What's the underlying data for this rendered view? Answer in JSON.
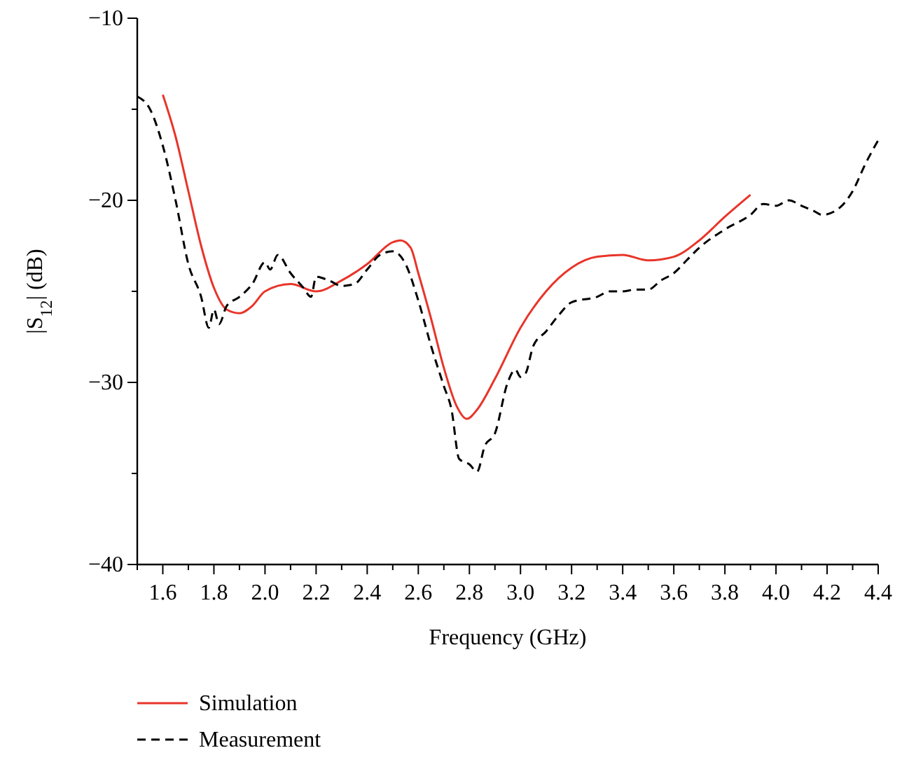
{
  "chart_data": {
    "type": "line",
    "xlabel": "Frequency (GHz)",
    "ylabel": "|S$_{12}$| (dB)",
    "xlim": [
      1.5,
      4.4
    ],
    "xticks": [
      {
        "value": 1.5,
        "label": null
      },
      1.6,
      {
        "value": 1.7,
        "label": null
      },
      1.8,
      {
        "value": 1.9,
        "label": null
      },
      {
        "value": 2.0,
        "label": "2.0"
      },
      {
        "value": 2.1,
        "label": null
      },
      2.2,
      {
        "value": 2.3,
        "label": null
      },
      2.4,
      {
        "value": 2.5,
        "label": null
      },
      2.6,
      {
        "value": 2.7,
        "label": null
      },
      2.8,
      {
        "value": 2.9,
        "label": null
      },
      {
        "value": 3.0,
        "label": "3.0"
      },
      {
        "value": 3.1,
        "label": null
      },
      3.2,
      {
        "value": 3.3,
        "label": null
      },
      3.4,
      {
        "value": 3.5,
        "label": null
      },
      3.6,
      {
        "value": 3.7,
        "label": null
      },
      3.8,
      {
        "value": 3.9,
        "label": null
      },
      {
        "value": 4.0,
        "label": "4.0"
      },
      {
        "value": 4.1,
        "label": null
      },
      4.2,
      {
        "value": 4.3,
        "label": null
      },
      4.4
    ],
    "ylim": [
      -40,
      -10
    ],
    "yticks": [
      {
        "value": -40,
        "label": "−40"
      },
      {
        "value": -35,
        "label": null
      },
      {
        "value": -30,
        "label": "−30"
      },
      {
        "value": -25,
        "label": null
      },
      {
        "value": -20,
        "label": "−20"
      },
      {
        "value": -15,
        "label": null
      },
      {
        "value": -10,
        "label": "−10"
      }
    ],
    "grid": false,
    "legend": "bottom left",
    "marker": "none",
    "series": [
      {
        "name": "Simulation",
        "color": "#e8352a",
        "line_style": "solid",
        "x": [
          1.6,
          1.65,
          1.7,
          1.75,
          1.8,
          1.85,
          1.9,
          1.95,
          2.0,
          2.1,
          2.2,
          2.3,
          2.4,
          2.5,
          2.53,
          2.57,
          2.6,
          2.65,
          2.7,
          2.75,
          2.79,
          2.83,
          2.9,
          3.0,
          3.1,
          3.2,
          3.3,
          3.4,
          3.5,
          3.6,
          3.7,
          3.8,
          3.9
        ],
        "values": [
          -14.2,
          -16.5,
          -19.5,
          -22.5,
          -24.8,
          -26.0,
          -26.2,
          -25.8,
          -25.0,
          -24.6,
          -25.0,
          -24.4,
          -23.5,
          -22.3,
          -22.2,
          -22.6,
          -24.0,
          -26.5,
          -29.2,
          -31.3,
          -32.0,
          -31.5,
          -29.8,
          -27.0,
          -25.0,
          -23.7,
          -23.1,
          -23.0,
          -23.3,
          -23.1,
          -22.2,
          -20.9,
          -19.7
        ]
      },
      {
        "name": "Measurement",
        "color": "#000000",
        "line_style": "dashed",
        "x": [
          1.5,
          1.55,
          1.6,
          1.65,
          1.7,
          1.75,
          1.78,
          1.8,
          1.82,
          1.85,
          1.9,
          1.95,
          2.0,
          2.02,
          2.05,
          2.1,
          2.15,
          2.18,
          2.2,
          2.25,
          2.3,
          2.35,
          2.4,
          2.45,
          2.5,
          2.55,
          2.6,
          2.65,
          2.7,
          2.73,
          2.76,
          2.8,
          2.83,
          2.86,
          2.9,
          2.95,
          2.98,
          3.0,
          3.02,
          3.05,
          3.1,
          3.15,
          3.2,
          3.3,
          3.35,
          3.4,
          3.45,
          3.5,
          3.55,
          3.6,
          3.65,
          3.7,
          3.8,
          3.9,
          3.95,
          4.0,
          4.05,
          4.1,
          4.15,
          4.18,
          4.25,
          4.3,
          4.35,
          4.4
        ],
        "values": [
          -14.3,
          -15.0,
          -17.0,
          -20.0,
          -23.5,
          -25.3,
          -27.0,
          -26.0,
          -26.8,
          -25.8,
          -25.3,
          -24.6,
          -23.4,
          -23.8,
          -23.0,
          -24.0,
          -24.8,
          -25.3,
          -24.2,
          -24.4,
          -24.7,
          -24.6,
          -23.8,
          -23.0,
          -22.8,
          -23.5,
          -25.5,
          -28.0,
          -30.2,
          -31.5,
          -34.2,
          -34.5,
          -34.9,
          -33.5,
          -32.8,
          -30.0,
          -29.3,
          -29.7,
          -29.5,
          -28.0,
          -27.2,
          -26.3,
          -25.6,
          -25.3,
          -25.0,
          -25.0,
          -24.9,
          -24.9,
          -24.4,
          -24.0,
          -23.3,
          -22.6,
          -21.6,
          -20.8,
          -20.2,
          -20.3,
          -20.0,
          -20.3,
          -20.6,
          -20.8,
          -20.4,
          -19.5,
          -18.0,
          -16.7
        ]
      }
    ]
  }
}
